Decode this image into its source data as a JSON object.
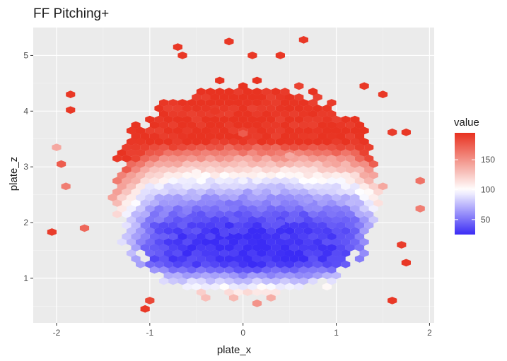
{
  "chart_data": {
    "type": "heatmap",
    "subtype": "hexbin",
    "title": "FF Pitching+",
    "xlabel": "plate_x",
    "ylabel": "plate_z",
    "xlim": [
      -2.25,
      2.05
    ],
    "ylim": [
      0.2,
      5.5
    ],
    "x_ticks": [
      -2,
      -1,
      0,
      1,
      2
    ],
    "x_tick_labels": [
      "-2",
      "-1",
      "0",
      "1",
      "2"
    ],
    "y_ticks": [
      1,
      2,
      3,
      4,
      5
    ],
    "y_tick_labels": [
      "1",
      "2",
      "3",
      "4",
      "5"
    ],
    "grid": true,
    "panel_background": "#ebebeb",
    "legend": {
      "title": "value",
      "position": "right",
      "breaks": [
        50,
        100,
        150
      ],
      "break_labels": [
        "50",
        "100",
        "150"
      ],
      "range": [
        25,
        195
      ],
      "colors": {
        "low": "#3b2cf5",
        "mid": "#ffffff",
        "high": "#e8311f"
      },
      "midpoint": 100
    },
    "hex_bins": {
      "binwidth_x": 0.1,
      "binwidth_z": 0.1,
      "pattern": "value is lowest near plate_x 0.1, plate_z 1.6 and rises toward the top of the zone; the outer edges are mid-to-high",
      "core_region": {
        "x": [
          -1.35,
          1.4
        ],
        "z": [
          0.9,
          4.3
        ]
      },
      "cells": [
        {
          "x": 0.2,
          "z": 1.58,
          "value": 25
        },
        {
          "x": -0.2,
          "z": 1.8,
          "value": 35
        },
        {
          "x": 0.4,
          "z": 2.0,
          "value": 40
        },
        {
          "x": -0.6,
          "z": 2.2,
          "value": 55
        },
        {
          "x": 0.7,
          "z": 2.4,
          "value": 65
        },
        {
          "x": 0.0,
          "z": 2.75,
          "value": 95
        },
        {
          "x": -0.5,
          "z": 2.9,
          "value": 105
        },
        {
          "x": 0.5,
          "z": 3.2,
          "value": 140
        },
        {
          "x": 0.0,
          "z": 3.6,
          "value": 175
        },
        {
          "x": -0.3,
          "z": 4.0,
          "value": 192
        },
        {
          "x": -1.85,
          "z": 4.3,
          "value": 192
        },
        {
          "x": -1.85,
          "z": 4.02,
          "value": 192
        },
        {
          "x": -2.05,
          "z": 1.83,
          "value": 190
        },
        {
          "x": -2.0,
          "z": 3.35,
          "value": 140
        },
        {
          "x": -1.95,
          "z": 3.05,
          "value": 175
        },
        {
          "x": -1.9,
          "z": 2.65,
          "value": 160
        },
        {
          "x": -1.7,
          "z": 1.9,
          "value": 170
        },
        {
          "x": -1.05,
          "z": 0.45,
          "value": 192
        },
        {
          "x": -1.0,
          "z": 0.6,
          "value": 185
        },
        {
          "x": -0.7,
          "z": 5.15,
          "value": 192
        },
        {
          "x": -0.65,
          "z": 5.0,
          "value": 192
        },
        {
          "x": -0.15,
          "z": 5.25,
          "value": 192
        },
        {
          "x": 0.65,
          "z": 5.28,
          "value": 192
        },
        {
          "x": 0.4,
          "z": 5.0,
          "value": 192
        },
        {
          "x": 0.1,
          "z": 5.0,
          "value": 192
        },
        {
          "x": 1.3,
          "z": 4.45,
          "value": 192
        },
        {
          "x": 1.5,
          "z": 4.3,
          "value": 192
        },
        {
          "x": 1.6,
          "z": 3.62,
          "value": 190
        },
        {
          "x": 1.75,
          "z": 3.62,
          "value": 192
        },
        {
          "x": 1.6,
          "z": 0.6,
          "value": 192
        },
        {
          "x": 1.75,
          "z": 1.28,
          "value": 192
        },
        {
          "x": 1.9,
          "z": 2.75,
          "value": 165
        },
        {
          "x": 1.9,
          "z": 2.25,
          "value": 160
        },
        {
          "x": 1.7,
          "z": 1.6,
          "value": 190
        }
      ]
    }
  }
}
